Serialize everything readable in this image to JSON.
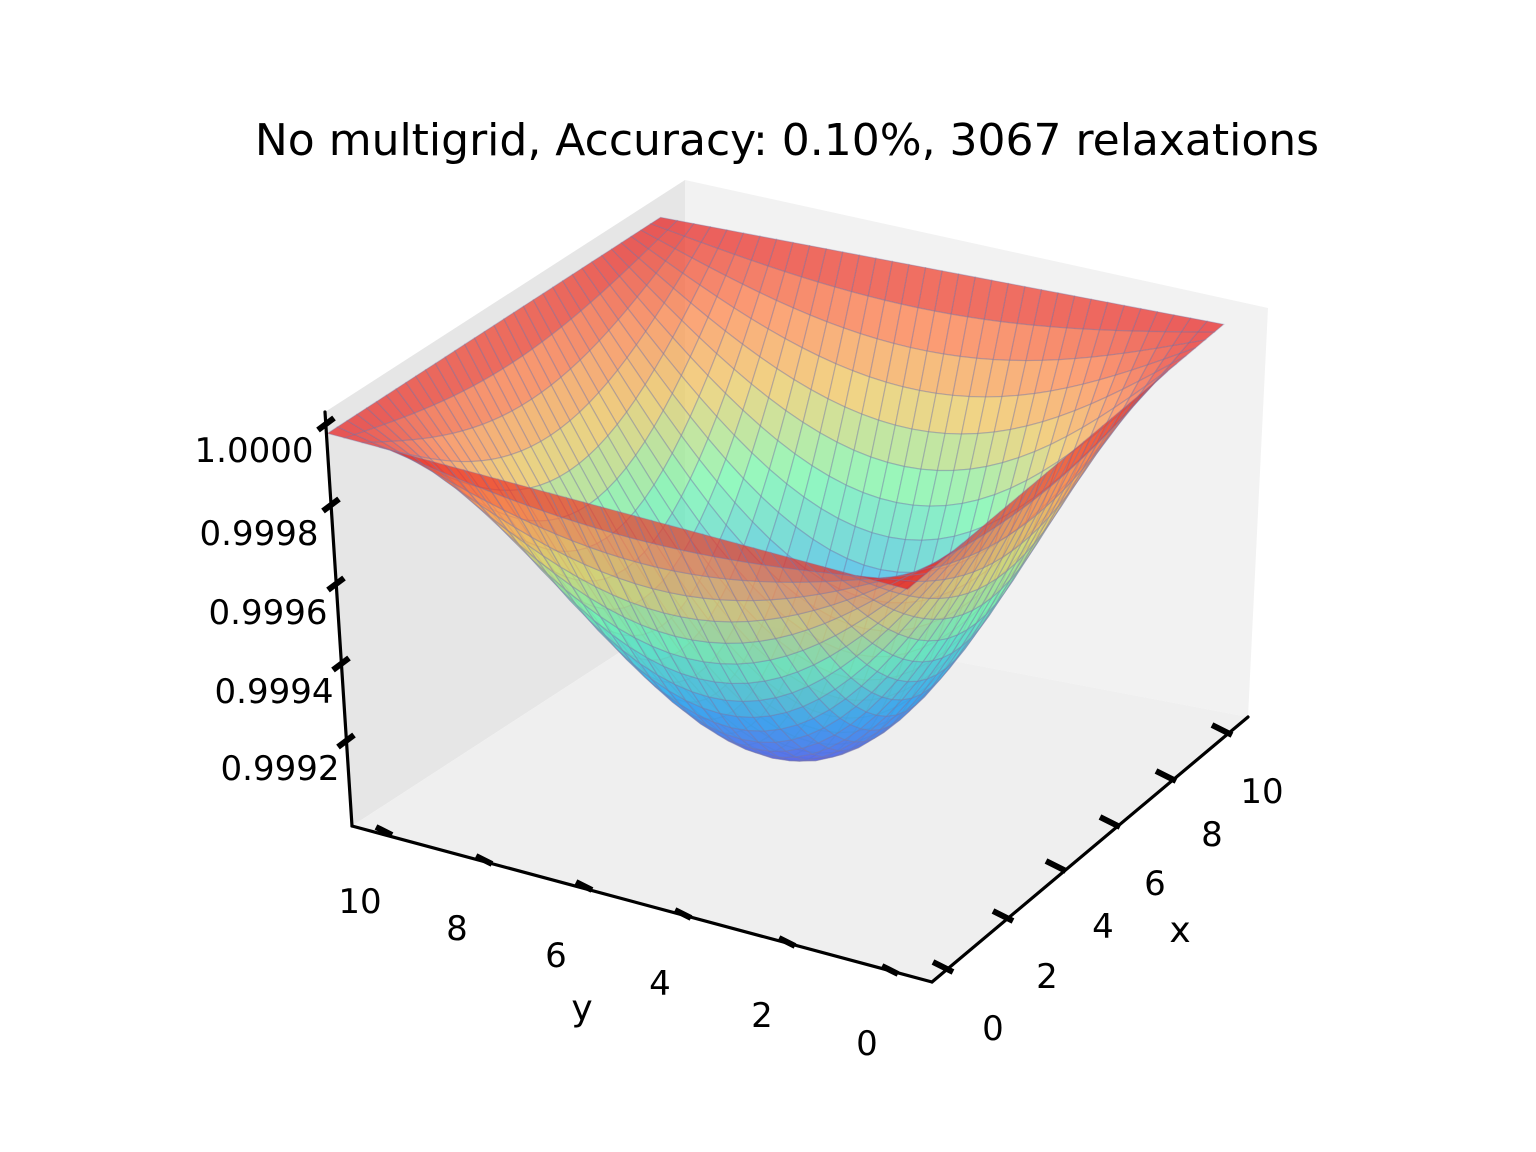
{
  "chart_data": {
    "type": "surface",
    "title": "No multigrid, Accuracy: 0.10%, 3067 relaxations",
    "xlabel": "x",
    "ylabel": "y",
    "zlabel": "",
    "x_ticks": [
      "0",
      "2",
      "4",
      "6",
      "8",
      "10"
    ],
    "y_ticks": [
      "0",
      "2",
      "4",
      "6",
      "8",
      "10"
    ],
    "z_ticks": [
      "0.9992",
      "0.9994",
      "0.9996",
      "0.9998",
      "1.0000"
    ],
    "xlim": [
      0,
      11
    ],
    "ylim": [
      0,
      11
    ],
    "zlim": [
      0.99905,
      1.0001
    ],
    "surface": {
      "grid_x": [
        0,
        11
      ],
      "grid_y": [
        0,
        11
      ],
      "boundary_value": 1.0,
      "min_value": 0.99913,
      "min_at": [
        5.5,
        5.5
      ],
      "shape": "cos-bowl"
    },
    "colormap": "rainbow",
    "grid": true,
    "colors": {
      "pane_left": "#e8e8e8",
      "pane_right": "#f2f2f2",
      "pane_floor": "#efefef",
      "grid_line": "#ffffff"
    }
  }
}
